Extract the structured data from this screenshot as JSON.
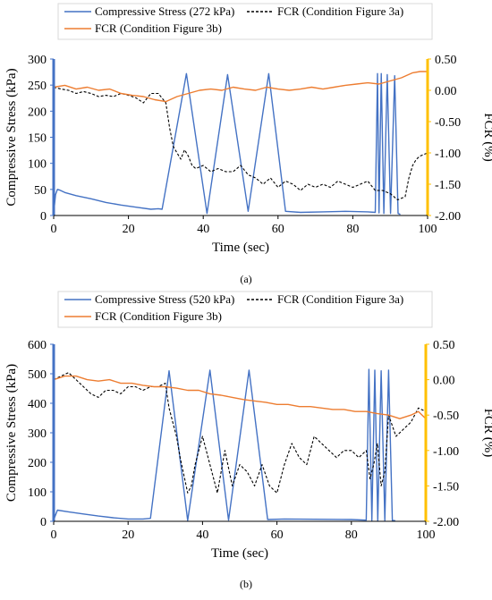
{
  "chart_data": [
    {
      "type": "line",
      "panel_label": "(a)",
      "xlabel": "Time (sec)",
      "ylabel": "Compressive Stress (kPa)",
      "y2label": "FCR (%)",
      "xlim": [
        0,
        100
      ],
      "ylim": [
        0,
        300
      ],
      "y2lim": [
        -2.0,
        0.5
      ],
      "x_ticks": [
        "0",
        "20",
        "40",
        "60",
        "80",
        "100"
      ],
      "y_ticks": [
        "0",
        "50",
        "100",
        "150",
        "200",
        "250",
        "300"
      ],
      "y2_ticks": [
        "-2.00",
        "-1.50",
        "-1.00",
        "-0.50",
        "0.00",
        "0.50"
      ],
      "grid": false,
      "legend_position": "top",
      "series": [
        {
          "name": "Compressive Stress (272 kPa)",
          "axis": "left",
          "style": "solid",
          "color": "#4472c4",
          "x": [
            0,
            0.5,
            1,
            1.5,
            3,
            6,
            10,
            14,
            18,
            22,
            26,
            28,
            29,
            35.5,
            41,
            46.5,
            52,
            57.5,
            62,
            66,
            72,
            78,
            84,
            86,
            86.6,
            87,
            87.6,
            88.3,
            89.2,
            90.1,
            91.2,
            92.1,
            92.7
          ],
          "y": [
            5,
            40,
            50,
            49,
            44,
            38,
            32,
            25,
            20,
            16,
            12,
            13,
            12,
            272,
            4,
            270,
            8,
            272,
            8,
            6,
            7,
            8,
            7,
            6,
            272,
            5,
            272,
            4,
            270,
            4,
            268,
            4,
            2
          ]
        },
        {
          "name": "FCR (Condition Figure 3a)",
          "axis": "right",
          "style": "dashed",
          "color": "#000000",
          "x": [
            0,
            2,
            4,
            6,
            8,
            10,
            12,
            14,
            16,
            18,
            20,
            22,
            24,
            26,
            28,
            30,
            31,
            32,
            33,
            34,
            35,
            36,
            37,
            38,
            40,
            42,
            44,
            46,
            48,
            50,
            52,
            54,
            56,
            58,
            60,
            62,
            64,
            66,
            68,
            70,
            72,
            74,
            76,
            78,
            80,
            82,
            84,
            86,
            88,
            90,
            92,
            94,
            95,
            96,
            97,
            98,
            100
          ],
          "y": [
            0.05,
            0.02,
            0.0,
            -0.05,
            -0.02,
            -0.05,
            -0.1,
            -0.08,
            -0.1,
            -0.05,
            -0.08,
            -0.12,
            -0.2,
            -0.05,
            -0.05,
            -0.2,
            -0.6,
            -0.9,
            -1.0,
            -1.1,
            -0.95,
            -1.05,
            -1.2,
            -1.25,
            -1.2,
            -1.3,
            -1.25,
            -1.3,
            -1.3,
            -1.2,
            -1.35,
            -1.4,
            -1.5,
            -1.4,
            -1.55,
            -1.45,
            -1.5,
            -1.6,
            -1.5,
            -1.55,
            -1.5,
            -1.55,
            -1.45,
            -1.5,
            -1.55,
            -1.5,
            -1.45,
            -1.6,
            -1.6,
            -1.65,
            -1.75,
            -1.7,
            -1.4,
            -1.2,
            -1.1,
            -1.05,
            -1.0
          ]
        },
        {
          "name": "FCR (Condition Figure 3b)",
          "axis": "right",
          "style": "solid",
          "color": "#ed7d31",
          "x": [
            0,
            3,
            6,
            9,
            12,
            15,
            18,
            21,
            24,
            27,
            30,
            33,
            36,
            39,
            42,
            45,
            48,
            51,
            54,
            57,
            60,
            63,
            66,
            69,
            72,
            75,
            78,
            81,
            84,
            87,
            90,
            93,
            96,
            98,
            100
          ],
          "y": [
            0.05,
            0.08,
            0.02,
            0.05,
            0.0,
            0.02,
            -0.05,
            -0.08,
            -0.1,
            -0.15,
            -0.18,
            -0.1,
            -0.05,
            0.0,
            0.02,
            0.0,
            0.05,
            0.02,
            0.0,
            0.05,
            0.02,
            0.0,
            0.02,
            0.05,
            0.02,
            0.05,
            0.08,
            0.1,
            0.12,
            0.1,
            0.15,
            0.2,
            0.28,
            0.3,
            0.3
          ]
        }
      ]
    },
    {
      "type": "line",
      "panel_label": "(b)",
      "xlabel": "Time (sec)",
      "ylabel": "Compressive Stress (kPa)",
      "y2label": "FCR (%)",
      "xlim": [
        0,
        100
      ],
      "ylim": [
        0,
        600
      ],
      "y2lim": [
        -2.0,
        0.5
      ],
      "x_ticks": [
        "0",
        "20",
        "40",
        "60",
        "80",
        "100"
      ],
      "y_ticks": [
        "0",
        "100",
        "200",
        "300",
        "400",
        "500",
        "600"
      ],
      "y2_ticks": [
        "-2.00",
        "-1.50",
        "-1.00",
        "-0.50",
        "0.00",
        "0.50"
      ],
      "grid": false,
      "legend_position": "top",
      "series": [
        {
          "name": "Compressive Stress (520 kPa)",
          "axis": "left",
          "style": "solid",
          "color": "#4472c4",
          "x": [
            0,
            1,
            4,
            8,
            12,
            16,
            20,
            24,
            26,
            31,
            36,
            42,
            47,
            52.5,
            57.5,
            62,
            70,
            80,
            84,
            84.7,
            85.5,
            86.3,
            87.1,
            88,
            89,
            90,
            91,
            91.8
          ],
          "y": [
            5,
            38,
            32,
            25,
            18,
            12,
            8,
            8,
            10,
            510,
            3,
            512,
            4,
            512,
            6,
            8,
            7,
            6,
            4,
            515,
            3,
            512,
            2,
            510,
            3,
            512,
            3,
            2
          ]
        },
        {
          "name": "FCR (Condition Figure 3a)",
          "axis": "right",
          "style": "dashed",
          "color": "#000000",
          "x": [
            0,
            2,
            4,
            6,
            8,
            10,
            12,
            14,
            16,
            18,
            20,
            22,
            24,
            26,
            28,
            30,
            31,
            32,
            33,
            34,
            35,
            36,
            37,
            38,
            40,
            42,
            44,
            46,
            48,
            50,
            52,
            54,
            56,
            58,
            60,
            62,
            64,
            66,
            68,
            70,
            72,
            74,
            76,
            78,
            80,
            82,
            84,
            85,
            86,
            87,
            88,
            89,
            90,
            92,
            94,
            96,
            98,
            100
          ],
          "y": [
            0.0,
            0.05,
            0.1,
            0.0,
            -0.1,
            -0.2,
            -0.25,
            -0.15,
            -0.15,
            -0.2,
            -0.1,
            -0.1,
            -0.15,
            -0.1,
            -0.1,
            -0.05,
            -0.4,
            -0.6,
            -0.8,
            -1.1,
            -1.35,
            -1.6,
            -1.5,
            -1.2,
            -0.8,
            -1.2,
            -1.6,
            -1.0,
            -1.5,
            -1.2,
            -1.3,
            -1.5,
            -1.2,
            -1.5,
            -1.6,
            -1.2,
            -0.9,
            -1.1,
            -1.2,
            -0.8,
            -0.9,
            -1.0,
            -1.1,
            -1.0,
            -1.0,
            -1.1,
            -1.0,
            -1.4,
            -1.2,
            -0.9,
            -1.5,
            -1.3,
            -0.5,
            -0.8,
            -0.7,
            -0.6,
            -0.4,
            -0.45
          ]
        },
        {
          "name": "FCR (Condition Figure 3b)",
          "axis": "right",
          "style": "solid",
          "color": "#ed7d31",
          "x": [
            0,
            3,
            6,
            9,
            12,
            15,
            18,
            21,
            24,
            27,
            30,
            33,
            36,
            39,
            42,
            45,
            48,
            51,
            54,
            57,
            60,
            63,
            66,
            69,
            72,
            75,
            78,
            81,
            84,
            87,
            90,
            93,
            96,
            98,
            100
          ],
          "y": [
            0.0,
            0.05,
            0.05,
            0.0,
            -0.02,
            0.0,
            -0.05,
            -0.05,
            -0.08,
            -0.1,
            -0.1,
            -0.12,
            -0.15,
            -0.15,
            -0.2,
            -0.22,
            -0.25,
            -0.28,
            -0.3,
            -0.32,
            -0.35,
            -0.35,
            -0.38,
            -0.38,
            -0.4,
            -0.42,
            -0.42,
            -0.45,
            -0.45,
            -0.48,
            -0.5,
            -0.55,
            -0.5,
            -0.45,
            -0.55
          ]
        }
      ]
    }
  ]
}
